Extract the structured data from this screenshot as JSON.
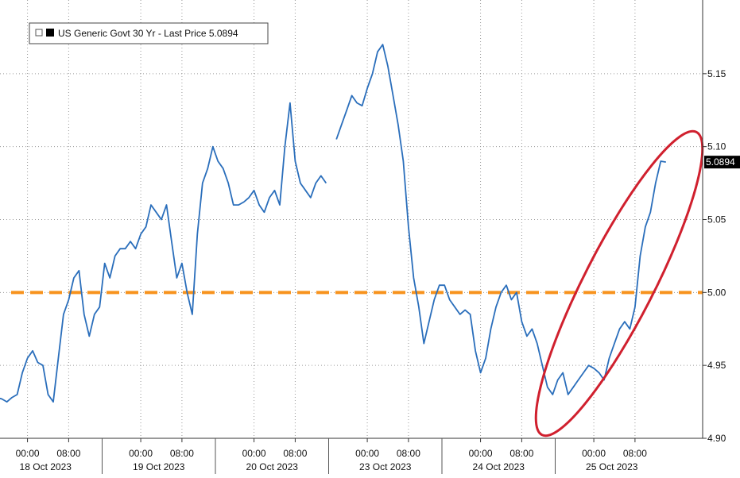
{
  "chart_data": {
    "type": "line",
    "legend": "US Generic Govt 30 Yr - Last Price 5.0894",
    "categories": [
      "17 Oct 2023 17:00",
      "17 Oct 2023 18:00",
      "17 Oct 2023 19:00",
      "17 Oct 2023 20:00",
      "17 Oct 2023 21:00",
      "17 Oct 2023 22:00",
      "17 Oct 2023 23:00",
      "18 Oct 2023 00:00",
      "18 Oct 2023 01:00",
      "18 Oct 2023 02:00",
      "18 Oct 2023 03:00",
      "18 Oct 2023 04:00",
      "18 Oct 2023 05:00",
      "18 Oct 2023 06:00",
      "18 Oct 2023 07:00",
      "18 Oct 2023 08:00",
      "18 Oct 2023 09:00",
      "18 Oct 2023 10:00",
      "18 Oct 2023 11:00",
      "18 Oct 2023 12:00",
      "18 Oct 2023 13:00",
      "18 Oct 2023 14:00",
      "18 Oct 2023 17:00",
      "18 Oct 2023 18:00",
      "18 Oct 2023 19:00",
      "18 Oct 2023 20:00",
      "18 Oct 2023 21:00",
      "18 Oct 2023 22:00",
      "18 Oct 2023 23:00",
      "19 Oct 2023 00:00",
      "19 Oct 2023 01:00",
      "19 Oct 2023 02:00",
      "19 Oct 2023 03:00",
      "19 Oct 2023 04:00",
      "19 Oct 2023 05:00",
      "19 Oct 2023 06:00",
      "19 Oct 2023 07:00",
      "19 Oct 2023 08:00",
      "19 Oct 2023 09:00",
      "19 Oct 2023 10:00",
      "19 Oct 2023 11:00",
      "19 Oct 2023 12:00",
      "19 Oct 2023 13:00",
      "19 Oct 2023 14:00",
      "19 Oct 2023 17:00",
      "19 Oct 2023 18:00",
      "19 Oct 2023 19:00",
      "19 Oct 2023 20:00",
      "19 Oct 2023 21:00",
      "19 Oct 2023 22:00",
      "19 Oct 2023 23:00",
      "20 Oct 2023 00:00",
      "20 Oct 2023 01:00",
      "20 Oct 2023 02:00",
      "20 Oct 2023 03:00",
      "20 Oct 2023 04:00",
      "20 Oct 2023 05:00",
      "20 Oct 2023 06:00",
      "20 Oct 2023 07:00",
      "20 Oct 2023 08:00",
      "20 Oct 2023 09:00",
      "20 Oct 2023 10:00",
      "20 Oct 2023 11:00",
      "20 Oct 2023 12:00",
      "20 Oct 2023 13:00",
      "20 Oct 2023 14:00",
      "22 Oct 2023 17:00",
      "22 Oct 2023 18:00",
      "22 Oct 2023 19:00",
      "22 Oct 2023 20:00",
      "22 Oct 2023 21:00",
      "22 Oct 2023 22:00",
      "22 Oct 2023 23:00",
      "23 Oct 2023 00:00",
      "23 Oct 2023 01:00",
      "23 Oct 2023 02:00",
      "23 Oct 2023 03:00",
      "23 Oct 2023 04:00",
      "23 Oct 2023 05:00",
      "23 Oct 2023 06:00",
      "23 Oct 2023 07:00",
      "23 Oct 2023 08:00",
      "23 Oct 2023 09:00",
      "23 Oct 2023 10:00",
      "23 Oct 2023 11:00",
      "23 Oct 2023 12:00",
      "23 Oct 2023 13:00",
      "23 Oct 2023 14:00",
      "23 Oct 2023 17:00",
      "23 Oct 2023 18:00",
      "23 Oct 2023 19:00",
      "23 Oct 2023 20:00",
      "23 Oct 2023 21:00",
      "23 Oct 2023 22:00",
      "23 Oct 2023 23:00",
      "24 Oct 2023 00:00",
      "24 Oct 2023 01:00",
      "24 Oct 2023 02:00",
      "24 Oct 2023 03:00",
      "24 Oct 2023 04:00",
      "24 Oct 2023 05:00",
      "24 Oct 2023 06:00",
      "24 Oct 2023 07:00",
      "24 Oct 2023 08:00",
      "24 Oct 2023 09:00",
      "24 Oct 2023 10:00",
      "24 Oct 2023 11:00",
      "24 Oct 2023 12:00",
      "24 Oct 2023 13:00",
      "24 Oct 2023 14:00",
      "24 Oct 2023 17:00",
      "24 Oct 2023 18:00",
      "24 Oct 2023 19:00",
      "24 Oct 2023 20:00",
      "24 Oct 2023 21:00",
      "24 Oct 2023 22:00",
      "24 Oct 2023 23:00",
      "25 Oct 2023 00:00",
      "25 Oct 2023 01:00",
      "25 Oct 2023 02:00",
      "25 Oct 2023 03:00",
      "25 Oct 2023 04:00",
      "25 Oct 2023 05:00",
      "25 Oct 2023 06:00",
      "25 Oct 2023 07:00",
      "25 Oct 2023 08:00",
      "25 Oct 2023 09:00",
      "25 Oct 2023 10:00",
      "25 Oct 2023 11:00",
      "25 Oct 2023 12:00",
      "25 Oct 2023 13:00",
      "25 Oct 2023 14:00"
    ],
    "series": [
      {
        "name": "US Generic Govt 30 Yr",
        "color": "#2a6ebb",
        "values": [
          4.93,
          4.928,
          4.927,
          4.925,
          4.928,
          4.93,
          4.945,
          4.955,
          4.96,
          4.952,
          4.95,
          4.93,
          4.925,
          4.955,
          4.985,
          4.995,
          5.01,
          5.015,
          4.985,
          4.97,
          4.985,
          4.99,
          5.02,
          5.01,
          5.025,
          5.03,
          5.03,
          5.035,
          5.03,
          5.04,
          5.045,
          5.06,
          5.055,
          5.05,
          5.06,
          5.035,
          5.01,
          5.02,
          5.0,
          4.985,
          5.04,
          5.075,
          5.085,
          5.1,
          5.09,
          5.085,
          5.075,
          5.06,
          5.06,
          5.062,
          5.065,
          5.07,
          5.06,
          5.055,
          5.065,
          5.07,
          5.06,
          5.1,
          5.13,
          5.09,
          5.075,
          5.07,
          5.065,
          5.075,
          5.08,
          5.075,
          null,
          5.105,
          5.115,
          5.125,
          5.135,
          5.13,
          5.128,
          5.14,
          5.15,
          5.165,
          5.17,
          5.155,
          5.135,
          5.115,
          5.09,
          5.045,
          5.01,
          4.99,
          4.965,
          4.98,
          4.995,
          5.005,
          5.005,
          4.995,
          4.99,
          4.985,
          4.988,
          4.985,
          4.96,
          4.945,
          4.955,
          4.975,
          4.99,
          5.0,
          5.005,
          4.995,
          5.0,
          4.98,
          4.97,
          4.975,
          4.965,
          4.95,
          4.935,
          4.93,
          4.94,
          4.945,
          4.93,
          4.935,
          4.94,
          4.945,
          4.95,
          4.948,
          4.945,
          4.94,
          4.955,
          4.965,
          4.975,
          4.98,
          4.975,
          4.99,
          5.025,
          5.045,
          5.055,
          5.075,
          5.09,
          5.0894
        ]
      }
    ],
    "ylim": [
      4.9,
      5.2
    ],
    "yticks": [
      {
        "value": 4.9,
        "label": "4.90"
      },
      4.95,
      {
        "value": 5.0,
        "label": "5.00"
      },
      5.05,
      {
        "value": 5.1,
        "label": "5.10"
      },
      5.15
    ],
    "xticks": [
      {
        "value": "18 Oct 2023 00:00",
        "label": "00:00"
      },
      {
        "value": "18 Oct 2023 08:00",
        "label": "08:00"
      },
      {
        "value": "19 Oct 2023 00:00",
        "label": "00:00"
      },
      {
        "value": "19 Oct 2023 08:00",
        "label": "08:00"
      },
      {
        "value": "20 Oct 2023 00:00",
        "label": "00:00"
      },
      {
        "value": "20 Oct 2023 08:00",
        "label": "08:00"
      },
      {
        "value": "23 Oct 2023 00:00",
        "label": "00:00"
      },
      {
        "value": "23 Oct 2023 08:00",
        "label": "08:00"
      },
      {
        "value": "24 Oct 2023 00:00",
        "label": "00:00"
      },
      {
        "value": "24 Oct 2023 08:00",
        "label": "08:00"
      },
      {
        "value": "25 Oct 2023 00:00",
        "label": "00:00"
      },
      {
        "value": "25 Oct 2023 08:00",
        "label": "08:00"
      }
    ],
    "x_groups": [
      {
        "label": "18 Oct 2023",
        "from": "17 Oct 2023 17:00",
        "to": "18 Oct 2023 14:00"
      },
      {
        "label": "19 Oct 2023",
        "from": "18 Oct 2023 17:00",
        "to": "19 Oct 2023 14:00"
      },
      {
        "label": "20 Oct 2023",
        "from": "19 Oct 2023 17:00",
        "to": "20 Oct 2023 14:00"
      },
      {
        "label": "23 Oct 2023",
        "from": "22 Oct 2023 17:00",
        "to": "23 Oct 2023 14:00"
      },
      {
        "label": "24 Oct 2023",
        "from": "23 Oct 2023 17:00",
        "to": "24 Oct 2023 14:00"
      },
      {
        "label": "25 Oct 2023",
        "from": "24 Oct 2023 17:00",
        "to": "25 Oct 2023 14:00"
      }
    ],
    "reference_line": {
      "value": 5.0,
      "color": "#f7931e"
    },
    "annotation_color": "#d0202e",
    "grid": true
  }
}
